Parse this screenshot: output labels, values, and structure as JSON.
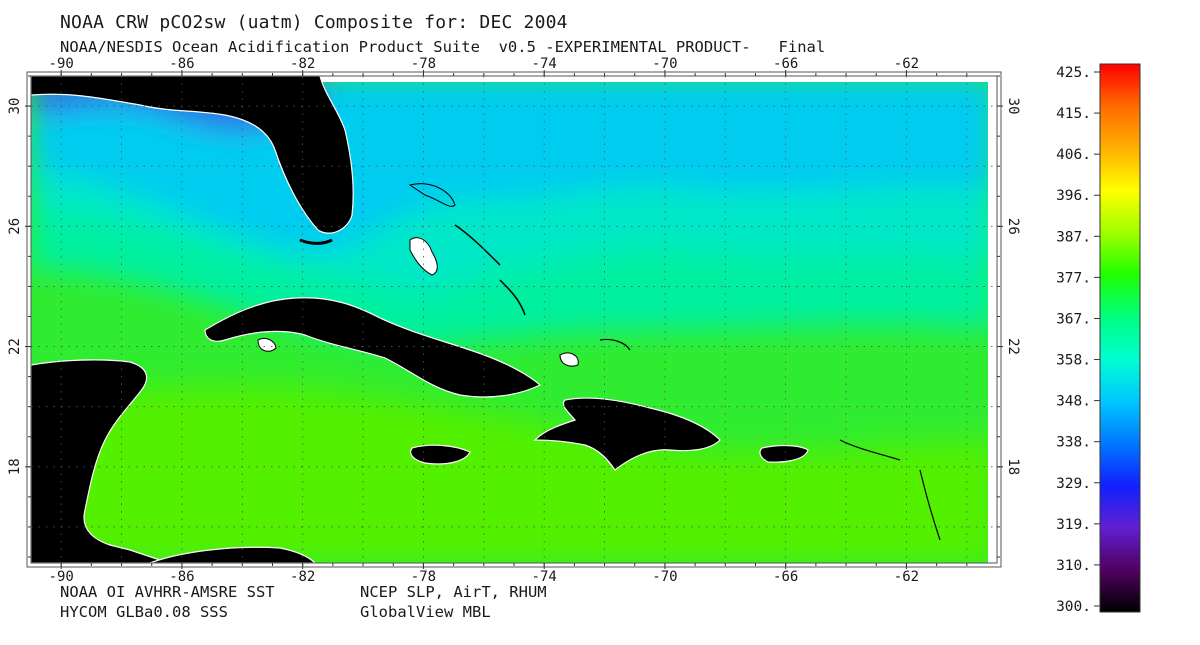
{
  "title_line1": "NOAA CRW pCO2sw (uatm) Composite for: DEC 2004",
  "title_line2": "NOAA/NESDIS Ocean Acidification Product Suite  v0.5 -EXPERIMENTAL PRODUCT-   Final",
  "footer": {
    "left_line1": "NOAA OI AVHRR-AMSRE SST",
    "left_line2": "HYCOM GLBa0.08 SSS",
    "right_line1": "NCEP SLP, AirT, RHUM",
    "right_line2": "GlobalView MBL"
  },
  "map": {
    "lon_range": [
      -91,
      -59
    ],
    "lat_range": [
      14.8,
      31
    ],
    "lon_ticks": [
      "-90",
      "-86",
      "-82",
      "-78",
      "-74",
      "-70",
      "-66",
      "-62"
    ],
    "lon_values": [
      -90,
      -86,
      -82,
      -78,
      -74,
      -70,
      -66,
      -62
    ],
    "lat_ticks": [
      "30",
      "26",
      "22",
      "18"
    ],
    "lat_values": [
      30,
      26,
      22,
      18
    ],
    "land_color": "#000000",
    "ocean_colors": {
      "north_blue": "#2a6fe6",
      "cyan": "#00ccf0",
      "aqua": "#00e8c8",
      "mint": "#00f0a0",
      "green": "#30ec30",
      "lime": "#52f000"
    }
  },
  "colorbar": {
    "labels": [
      "425.",
      "415.",
      "406.",
      "396.",
      "387.",
      "377.",
      "367.",
      "358.",
      "348.",
      "338.",
      "329.",
      "319.",
      "310.",
      "300."
    ],
    "stops": [
      "#ff0000",
      "#ff6a00",
      "#ffb000",
      "#ffff00",
      "#a0ff00",
      "#20ff00",
      "#00ff80",
      "#00ffd0",
      "#00c8ff",
      "#0078ff",
      "#1020ff",
      "#6020d0",
      "#500060",
      "#000000"
    ]
  }
}
